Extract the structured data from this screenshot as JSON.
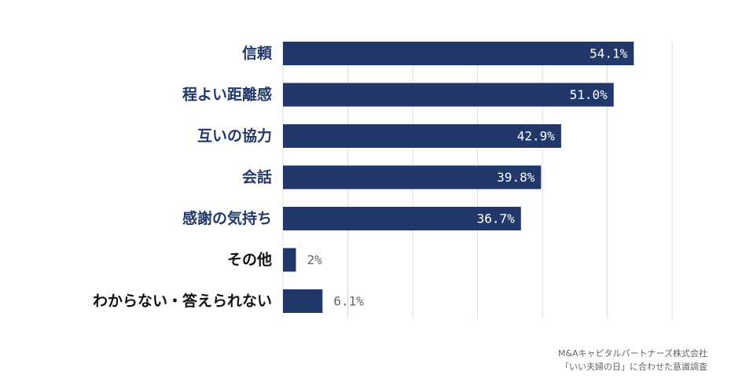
{
  "colors": {
    "bar": "#22386b",
    "label": "#22386b",
    "label_other": "#111111",
    "grid": "#dddddd",
    "value_outside": "#666666"
  },
  "chart_data": {
    "type": "bar",
    "orientation": "horizontal",
    "categories": [
      "信頼",
      "程よい距離感",
      "互いの協力",
      "会話",
      "感謝の気持ち",
      "その他",
      "わからない・答えられない"
    ],
    "values": [
      54.1,
      51.0,
      42.9,
      39.8,
      36.7,
      2,
      6.1
    ],
    "value_labels": [
      "54.1%",
      "51.0%",
      "42.9%",
      "39.8%",
      "36.7%",
      "2%",
      "6.1%"
    ],
    "label_inside": [
      true,
      true,
      true,
      true,
      true,
      false,
      false
    ],
    "xlim": [
      0,
      60
    ],
    "grid": true
  },
  "source": {
    "line1": "M&Aキャピタルパートナーズ株式会社",
    "line2": "「いい夫婦の日」に合わせた意識調査"
  }
}
